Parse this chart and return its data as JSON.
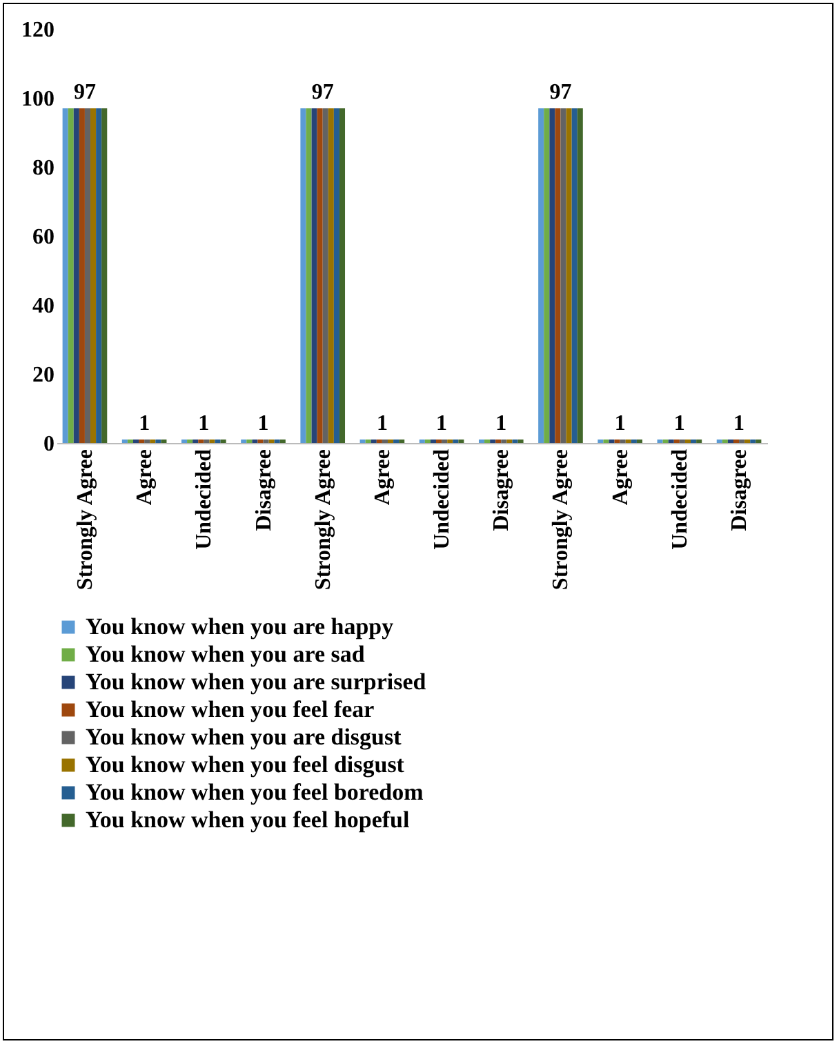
{
  "chart_data": {
    "type": "bar",
    "categories": [
      "Strongly Agree",
      "Agree",
      "Undecided",
      "Disagree",
      "Strongly Agree",
      "Agree",
      "Undecided",
      "Disagree",
      "Strongly Agree",
      "Agree",
      "Undecided",
      "Disagree"
    ],
    "series": [
      {
        "name": "You know when you are happy",
        "color": "#5b9bd5",
        "values": [
          97,
          1,
          1,
          1,
          97,
          1,
          1,
          1,
          97,
          1,
          1,
          1
        ]
      },
      {
        "name": "You know when you are sad",
        "color": "#70ad47",
        "values": [
          97,
          1,
          1,
          1,
          97,
          1,
          1,
          1,
          97,
          1,
          1,
          1
        ]
      },
      {
        "name": "You know when you are surprised",
        "color": "#264478",
        "values": [
          97,
          1,
          1,
          1,
          97,
          1,
          1,
          1,
          97,
          1,
          1,
          1
        ]
      },
      {
        "name": "You know when you feel fear",
        "color": "#9e480e",
        "values": [
          97,
          1,
          1,
          1,
          97,
          1,
          1,
          1,
          97,
          1,
          1,
          1
        ]
      },
      {
        "name": "You know when you are disgust",
        "color": "#636363",
        "values": [
          97,
          1,
          1,
          1,
          97,
          1,
          1,
          1,
          97,
          1,
          1,
          1
        ],
        "value_labels": [
          "97",
          "1",
          "1",
          "1",
          "97",
          "1",
          "1",
          "1",
          "97",
          "1",
          "1",
          "1"
        ]
      },
      {
        "name": "You know when you feel disgust",
        "color": "#997300",
        "values": [
          97,
          1,
          1,
          1,
          97,
          1,
          1,
          1,
          97,
          1,
          1,
          1
        ]
      },
      {
        "name": "You know when you feel boredom",
        "color": "#255e91",
        "values": [
          97,
          1,
          1,
          1,
          97,
          1,
          1,
          1,
          97,
          1,
          1,
          1
        ]
      },
      {
        "name": "You know when you feel hopeful",
        "color": "#43682b",
        "values": [
          97,
          1,
          1,
          1,
          97,
          1,
          1,
          1,
          97,
          1,
          1,
          1
        ]
      }
    ],
    "ylim": [
      0,
      120
    ],
    "yticks": [
      0,
      20,
      40,
      60,
      80,
      100,
      120
    ],
    "grid": false,
    "legend": "bottom"
  }
}
